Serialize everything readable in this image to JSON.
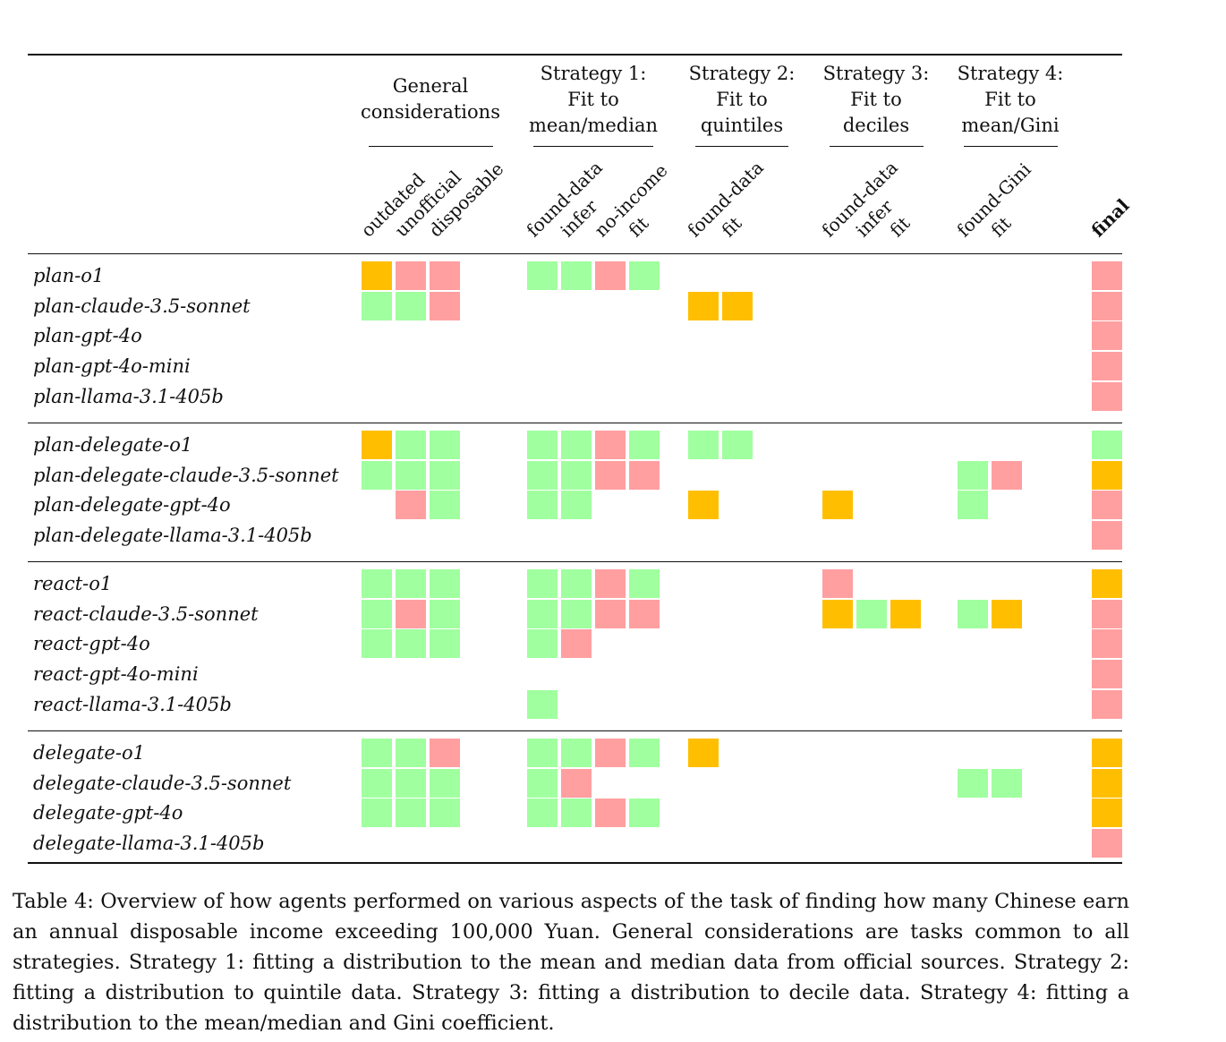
{
  "groups": [
    {
      "id": "gen",
      "title_lines": [
        "General",
        "considerations"
      ],
      "columns": [
        "outdated",
        "unofficial",
        "disposable"
      ]
    },
    {
      "id": "s1",
      "title_lines": [
        "Strategy 1:",
        "Fit to",
        "mean/median"
      ],
      "columns": [
        "found-data",
        "infer",
        "no-income",
        "fit"
      ]
    },
    {
      "id": "s2",
      "title_lines": [
        "Strategy 2:",
        "Fit to",
        "quintiles"
      ],
      "columns": [
        "found-data",
        "fit"
      ]
    },
    {
      "id": "s3",
      "title_lines": [
        "Strategy 3:",
        "Fit to",
        "deciles"
      ],
      "columns": [
        "found-data",
        "infer",
        "fit"
      ]
    },
    {
      "id": "s4",
      "title_lines": [
        "Strategy 4:",
        "Fit to",
        "mean/Gini"
      ],
      "columns": [
        "found-Gini",
        "fit"
      ]
    }
  ],
  "final_label": "final",
  "colors": {
    "G": "#a0ff9f",
    "R": "#ff9fa0",
    "Y": "#ffbf00"
  },
  "row_groups": [
    [
      {
        "name": "plan-o1",
        "cells": [
          "Y",
          "R",
          "R",
          "G",
          "G",
          "R",
          "G",
          "",
          "",
          "",
          "",
          "",
          "",
          "",
          "R"
        ]
      },
      {
        "name": "plan-claude-3.5-sonnet",
        "cells": [
          "G",
          "G",
          "R",
          "",
          "",
          "",
          "",
          "Y",
          "Y",
          "",
          "",
          "",
          "",
          "",
          "R"
        ]
      },
      {
        "name": "plan-gpt-4o",
        "cells": [
          "",
          "",
          "",
          "",
          "",
          "",
          "",
          "",
          "",
          "",
          "",
          "",
          "",
          "",
          "R"
        ]
      },
      {
        "name": "plan-gpt-4o-mini",
        "cells": [
          "",
          "",
          "",
          "",
          "",
          "",
          "",
          "",
          "",
          "",
          "",
          "",
          "",
          "",
          "R"
        ]
      },
      {
        "name": "plan-llama-3.1-405b",
        "cells": [
          "",
          "",
          "",
          "",
          "",
          "",
          "",
          "",
          "",
          "",
          "",
          "",
          "",
          "",
          "R"
        ]
      }
    ],
    [
      {
        "name": "plan-delegate-o1",
        "cells": [
          "Y",
          "G",
          "G",
          "G",
          "G",
          "R",
          "G",
          "G",
          "G",
          "",
          "",
          "",
          "",
          "",
          "G"
        ]
      },
      {
        "name": "plan-delegate-claude-3.5-sonnet",
        "cells": [
          "G",
          "G",
          "G",
          "G",
          "G",
          "R",
          "R",
          "",
          "",
          "",
          "",
          "",
          "G",
          "R",
          "Y"
        ]
      },
      {
        "name": "plan-delegate-gpt-4o",
        "cells": [
          "",
          "R",
          "G",
          "G",
          "G",
          "",
          "",
          "Y",
          "",
          "Y",
          "",
          "",
          "G",
          "",
          "R"
        ]
      },
      {
        "name": "plan-delegate-llama-3.1-405b",
        "cells": [
          "",
          "",
          "",
          "",
          "",
          "",
          "",
          "",
          "",
          "",
          "",
          "",
          "",
          "",
          "R"
        ]
      }
    ],
    [
      {
        "name": "react-o1",
        "cells": [
          "G",
          "G",
          "G",
          "G",
          "G",
          "R",
          "G",
          "",
          "",
          "R",
          "",
          "",
          "",
          "",
          "Y"
        ]
      },
      {
        "name": "react-claude-3.5-sonnet",
        "cells": [
          "G",
          "R",
          "G",
          "G",
          "G",
          "R",
          "R",
          "",
          "",
          "Y",
          "G",
          "Y",
          "G",
          "Y",
          "R"
        ]
      },
      {
        "name": "react-gpt-4o",
        "cells": [
          "G",
          "G",
          "G",
          "G",
          "R",
          "",
          "",
          "",
          "",
          "",
          "",
          "",
          "",
          "",
          "R"
        ]
      },
      {
        "name": "react-gpt-4o-mini",
        "cells": [
          "",
          "",
          "",
          "",
          "",
          "",
          "",
          "",
          "",
          "",
          "",
          "",
          "",
          "",
          "R"
        ]
      },
      {
        "name": "react-llama-3.1-405b",
        "cells": [
          "",
          "",
          "",
          "G",
          "",
          "",
          "",
          "",
          "",
          "",
          "",
          "",
          "",
          "",
          "R"
        ]
      }
    ],
    [
      {
        "name": "delegate-o1",
        "cells": [
          "G",
          "G",
          "R",
          "G",
          "G",
          "R",
          "G",
          "Y",
          "",
          "",
          "",
          "",
          "",
          "",
          "Y"
        ]
      },
      {
        "name": "delegate-claude-3.5-sonnet",
        "cells": [
          "G",
          "G",
          "G",
          "G",
          "R",
          "",
          "",
          "",
          "",
          "",
          "",
          "",
          "G",
          "G",
          "Y"
        ]
      },
      {
        "name": "delegate-gpt-4o",
        "cells": [
          "G",
          "G",
          "G",
          "G",
          "G",
          "R",
          "G",
          "",
          "",
          "",
          "",
          "",
          "",
          "",
          "Y"
        ]
      },
      {
        "name": "delegate-llama-3.1-405b",
        "cells": [
          "",
          "",
          "",
          "",
          "",
          "",
          "",
          "",
          "",
          "",
          "",
          "",
          "",
          "",
          "R"
        ]
      }
    ]
  ],
  "caption": "Table 4: Overview of how agents performed on various aspects of the task of finding how many Chinese earn an annual disposable income exceeding 100,000 Yuan. General considerations are tasks common to all strategies. Strategy 1: fitting a distribution to the mean and median data from official sources. Strategy 2: fitting a distribution to quintile data. Strategy 3: fitting a distribution to decile data. Strategy 4: fitting a distribution to the mean/median and Gini coefficient."
}
